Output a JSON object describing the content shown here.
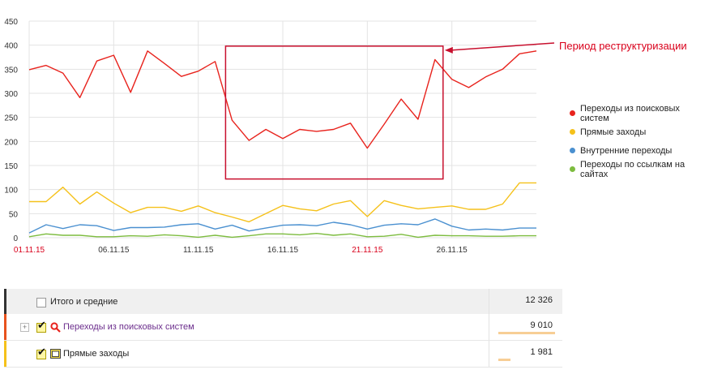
{
  "annotation": {
    "text": "Период реструктуризации",
    "color": "#d9001b"
  },
  "chart_data": {
    "type": "line",
    "title": "",
    "xlabel": "",
    "ylabel": "",
    "ylim": [
      0,
      450
    ],
    "yticks": [
      0,
      50,
      100,
      150,
      200,
      250,
      300,
      350,
      400,
      450
    ],
    "x": [
      "01.11.15",
      "02.11.15",
      "03.11.15",
      "04.11.15",
      "05.11.15",
      "06.11.15",
      "07.11.15",
      "08.11.15",
      "09.11.15",
      "10.11.15",
      "11.11.15",
      "12.11.15",
      "13.11.15",
      "14.11.15",
      "15.11.15",
      "16.11.15",
      "17.11.15",
      "18.11.15",
      "19.11.15",
      "20.11.15",
      "21.11.15",
      "22.11.15",
      "23.11.15",
      "24.11.15",
      "25.11.15",
      "26.11.15",
      "27.11.15",
      "28.11.15",
      "29.11.15",
      "30.11.15",
      "01.12.15"
    ],
    "xtick_labels": [
      {
        "label": "01.11.15",
        "color": "#d9001b"
      },
      {
        "label": "06.11.15",
        "color": "#333333"
      },
      {
        "label": "11.11.15",
        "color": "#333333"
      },
      {
        "label": "16.11.15",
        "color": "#333333"
      },
      {
        "label": "21.11.15",
        "color": "#d9001b"
      },
      {
        "label": "26.11.15",
        "color": "#333333"
      }
    ],
    "grid": true,
    "legend_position": "right",
    "series": [
      {
        "name": "Переходы из поисковых систем",
        "color": "#e8231d",
        "values": [
          349,
          358,
          342,
          291,
          367,
          379,
          302,
          388,
          362,
          335,
          346,
          366,
          244,
          202,
          225,
          206,
          225,
          221,
          225,
          238,
          186,
          236,
          288,
          246,
          370,
          329,
          312,
          334,
          350,
          382,
          388
        ]
      },
      {
        "name": "Прямые заходы",
        "color": "#f5c11a",
        "values": [
          75,
          75,
          105,
          70,
          95,
          72,
          52,
          63,
          63,
          55,
          66,
          52,
          43,
          33,
          50,
          67,
          60,
          56,
          70,
          77,
          44,
          77,
          67,
          60,
          63,
          66,
          59,
          59,
          70,
          114,
          114
        ]
      },
      {
        "name": "Внутренние переходы",
        "color": "#4a90d0",
        "values": [
          10,
          27,
          19,
          27,
          25,
          15,
          21,
          21,
          22,
          27,
          29,
          18,
          26,
          14,
          20,
          26,
          27,
          25,
          32,
          27,
          18,
          26,
          29,
          27,
          39,
          24,
          16,
          18,
          16,
          20,
          20
        ]
      },
      {
        "name": "Переходы по ссылкам на сайтах",
        "color": "#7dbc3f",
        "values": [
          2,
          8,
          5,
          5,
          2,
          2,
          4,
          3,
          6,
          4,
          1,
          5,
          1,
          4,
          8,
          8,
          6,
          9,
          5,
          8,
          2,
          3,
          7,
          1,
          5,
          4,
          4,
          3,
          3,
          4,
          4
        ]
      }
    ],
    "highlight_box": {
      "x_from": "13.11.15",
      "x_to": "25.11.15",
      "y_from": 122,
      "y_to": 398,
      "color": "#c8102e"
    }
  },
  "table": {
    "total": {
      "label": "Итого и средние",
      "value": "12 326"
    },
    "rows": [
      {
        "label": "Переходы из поисковых систем",
        "value": "9 010",
        "accent": "#e8521d",
        "share": 0.731,
        "icon": "search-icon",
        "expand": "+"
      },
      {
        "label": "Прямые заходы",
        "value": "1 981",
        "accent": "#f5c11a",
        "share": 0.161,
        "icon": "window-icon"
      }
    ]
  }
}
